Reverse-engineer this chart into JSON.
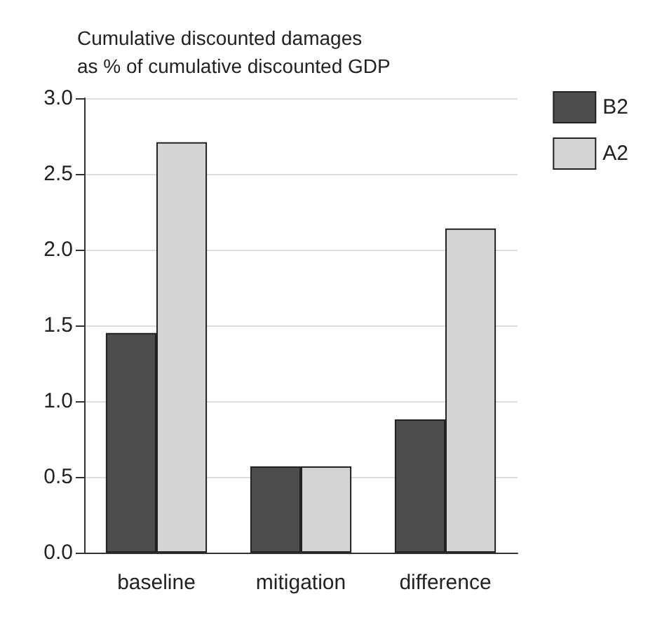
{
  "chart_data": {
    "type": "bar",
    "title": "Cumulative discounted damages\nas % of cumulative discounted GDP",
    "categories": [
      "baseline",
      "mitigation",
      "difference"
    ],
    "series": [
      {
        "name": "B2",
        "color": "#4d4d4d",
        "values": [
          1.45,
          0.57,
          0.88
        ]
      },
      {
        "name": "A2",
        "color": "#d4d4d4",
        "values": [
          2.71,
          0.57,
          2.14
        ]
      }
    ],
    "ylim": [
      0,
      3
    ],
    "yticks": [
      {
        "value": 0,
        "label": "0.0"
      },
      {
        "value": 0.5,
        "label": "0.5"
      },
      {
        "value": 1,
        "label": "1.0"
      },
      {
        "value": 1.5,
        "label": "1.5"
      },
      {
        "value": 2,
        "label": "2.0"
      },
      {
        "value": 2.5,
        "label": "2.5"
      },
      {
        "value": 3,
        "label": "3.0"
      }
    ],
    "grid": "y",
    "legend": "top right"
  }
}
